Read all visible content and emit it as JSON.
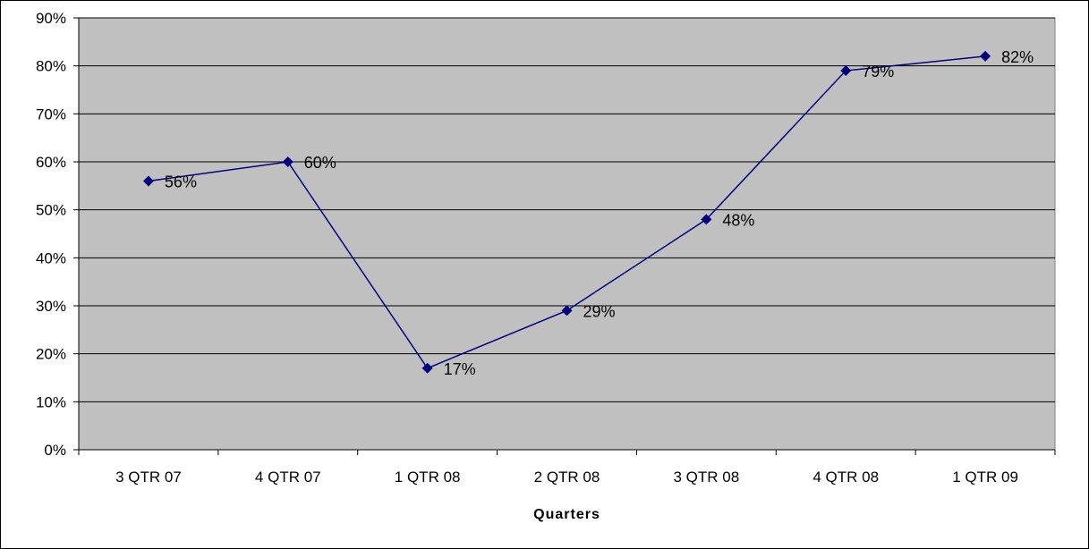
{
  "chart_data": {
    "type": "line",
    "title": "",
    "xlabel": "Quarters",
    "ylabel": "",
    "categories": [
      "3 QTR 07",
      "4 QTR 07",
      "1 QTR 08",
      "2 QTR 08",
      "3 QTR 08",
      "4 QTR 08",
      "1 QTR 09"
    ],
    "series": [
      {
        "values": [
          56,
          60,
          17,
          29,
          48,
          79,
          82
        ],
        "data_labels": [
          "56%",
          "60%",
          "17%",
          "29%",
          "48%",
          "79%",
          "82%"
        ],
        "color": "#000080",
        "marker": "diamond"
      }
    ],
    "ylim": [
      0,
      90
    ],
    "yticks": [
      0,
      10,
      20,
      30,
      40,
      50,
      60,
      70,
      80,
      90
    ],
    "ytick_labels": [
      "0%",
      "10%",
      "20%",
      "30%",
      "40%",
      "50%",
      "60%",
      "70%",
      "80%",
      "90%"
    ],
    "grid": true,
    "legend": "none",
    "plot_background": "#c0c0c0"
  }
}
